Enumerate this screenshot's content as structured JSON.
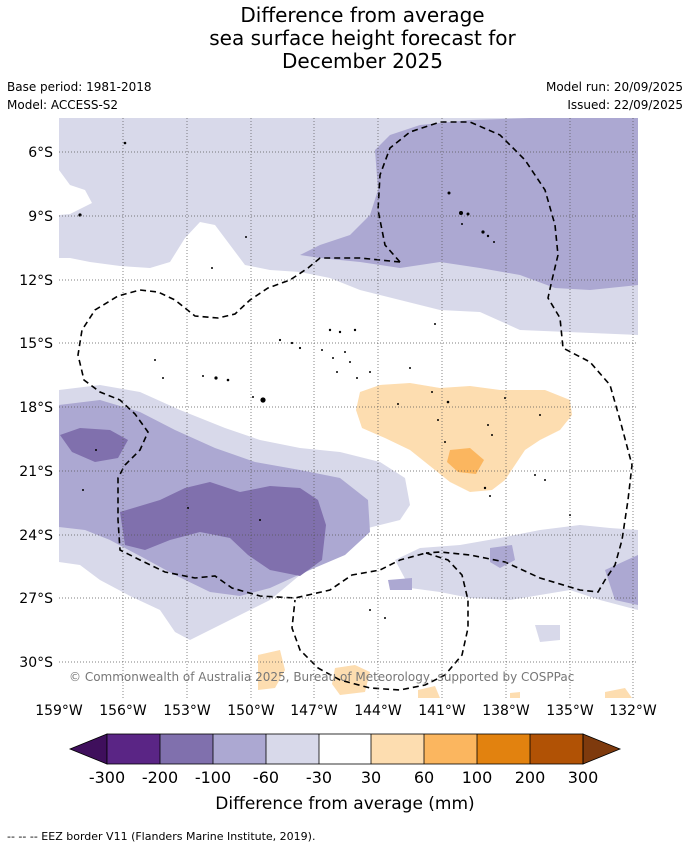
{
  "title": {
    "line1": "Difference from average",
    "line2": "sea surface height forecast for",
    "line3": "December 2025"
  },
  "meta": {
    "base_period": "Base period: 1981-2018",
    "model": "Model: ACCESS-S2",
    "model_run": "Model run: 20/09/2025",
    "issued": "Issued: 22/09/2025"
  },
  "map": {
    "lat_labels": [
      "6°S",
      "9°S",
      "12°S",
      "15°S",
      "18°S",
      "21°S",
      "24°S",
      "27°S",
      "30°S"
    ],
    "lon_labels": [
      "159°W",
      "156°W",
      "153°W",
      "150°W",
      "147°W",
      "144°W",
      "141°W",
      "138°W",
      "135°W",
      "132°W"
    ],
    "copyright": "© Commonwealth of Australia 2025, Bureau of Meteorology, supported by COSPPac"
  },
  "colorbar": {
    "title": "Difference from average (mm)",
    "ticks": [
      "-300",
      "-200",
      "-100",
      "-60",
      "-30",
      "30",
      "60",
      "100",
      "200",
      "300"
    ],
    "colors": [
      "#3f0f5c",
      "#5a2585",
      "#8070ad",
      "#aca8d2",
      "#d8d9ea",
      "#ffffff",
      "#fdddb0",
      "#fbb65f",
      "#e2820f",
      "#b15205",
      "#7e3a0d"
    ]
  },
  "footer": "--  --  -- EEZ border V11 (Flanders Marine Institute, 2019)."
}
